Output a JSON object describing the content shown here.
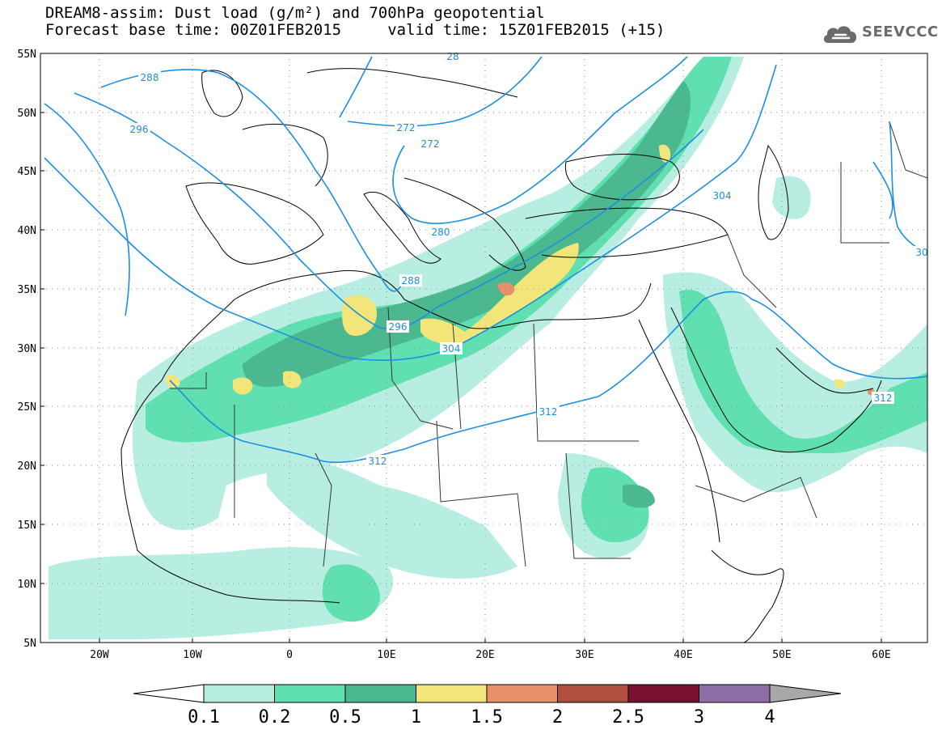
{
  "title": {
    "line1": "DREAM8-assim: Dust load (g/m²) and 700hPa geopotential",
    "line2": "Forecast base time: 00Z01FEB2015     valid time: 15Z01FEB2015 (+15)"
  },
  "logo": {
    "icon": "cloud-icon",
    "text": "SEEVCCC"
  },
  "axes": {
    "lat_labels": [
      "55N",
      "50N",
      "45N",
      "40N",
      "35N",
      "30N",
      "25N",
      "20N",
      "15N",
      "10N",
      "5N"
    ],
    "lon_labels": [
      "20W",
      "10W",
      "0",
      "10E",
      "20E",
      "30E",
      "40E",
      "50E",
      "60E"
    ]
  },
  "contour_labels": [
    "288",
    "296",
    "272",
    "272",
    "280",
    "288",
    "296",
    "304",
    "304",
    "312",
    "312",
    "312",
    "30",
    "28"
  ],
  "colorbar": {
    "levels": [
      "0.1",
      "0.2",
      "0.5",
      "1",
      "1.5",
      "2",
      "2.5",
      "3",
      "4"
    ],
    "colors": [
      "#b8eee2",
      "#60e0b0",
      "#4cb890",
      "#f2e67a",
      "#e8906a",
      "#b04e40",
      "#7a1030",
      "#8f6ea8"
    ],
    "over_color": "#a8a8a8",
    "under_color": "#ffffff"
  },
  "colors": {
    "contour": "#1b8fe0",
    "coast": "#000000",
    "border": "#333333"
  }
}
